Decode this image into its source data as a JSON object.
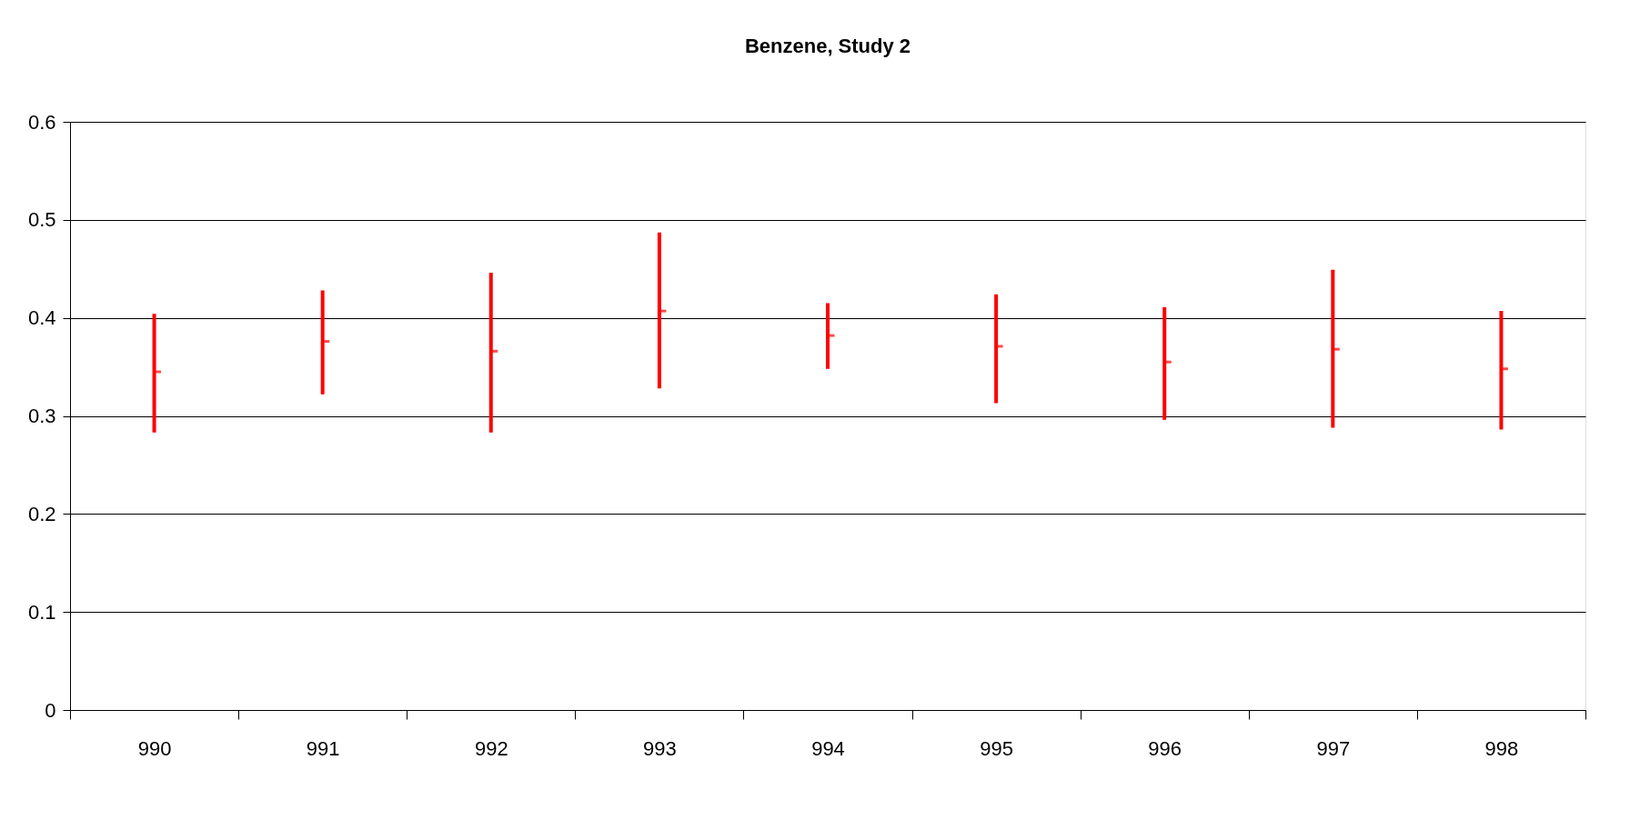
{
  "chart_data": {
    "type": "scatter",
    "title": "Benzene, Study 2",
    "categories": [
      "990",
      "991",
      "992",
      "993",
      "994",
      "995",
      "996",
      "997",
      "998"
    ],
    "values": [
      0.345,
      0.376,
      0.366,
      0.407,
      0.382,
      0.371,
      0.355,
      0.368,
      0.348
    ],
    "errors": [
      [
        0.283,
        0.404
      ],
      [
        0.322,
        0.428
      ],
      [
        0.283,
        0.446
      ],
      [
        0.328,
        0.487
      ],
      [
        0.348,
        0.415
      ],
      [
        0.313,
        0.424
      ],
      [
        0.296,
        0.411
      ],
      [
        0.288,
        0.449
      ],
      [
        0.286,
        0.407
      ]
    ],
    "color": "#ff0000",
    "ylim": [
      0,
      0.6
    ],
    "yticks": [
      0,
      0.1,
      0.2,
      0.3,
      0.4,
      0.5,
      0.6
    ],
    "grid": "y"
  }
}
